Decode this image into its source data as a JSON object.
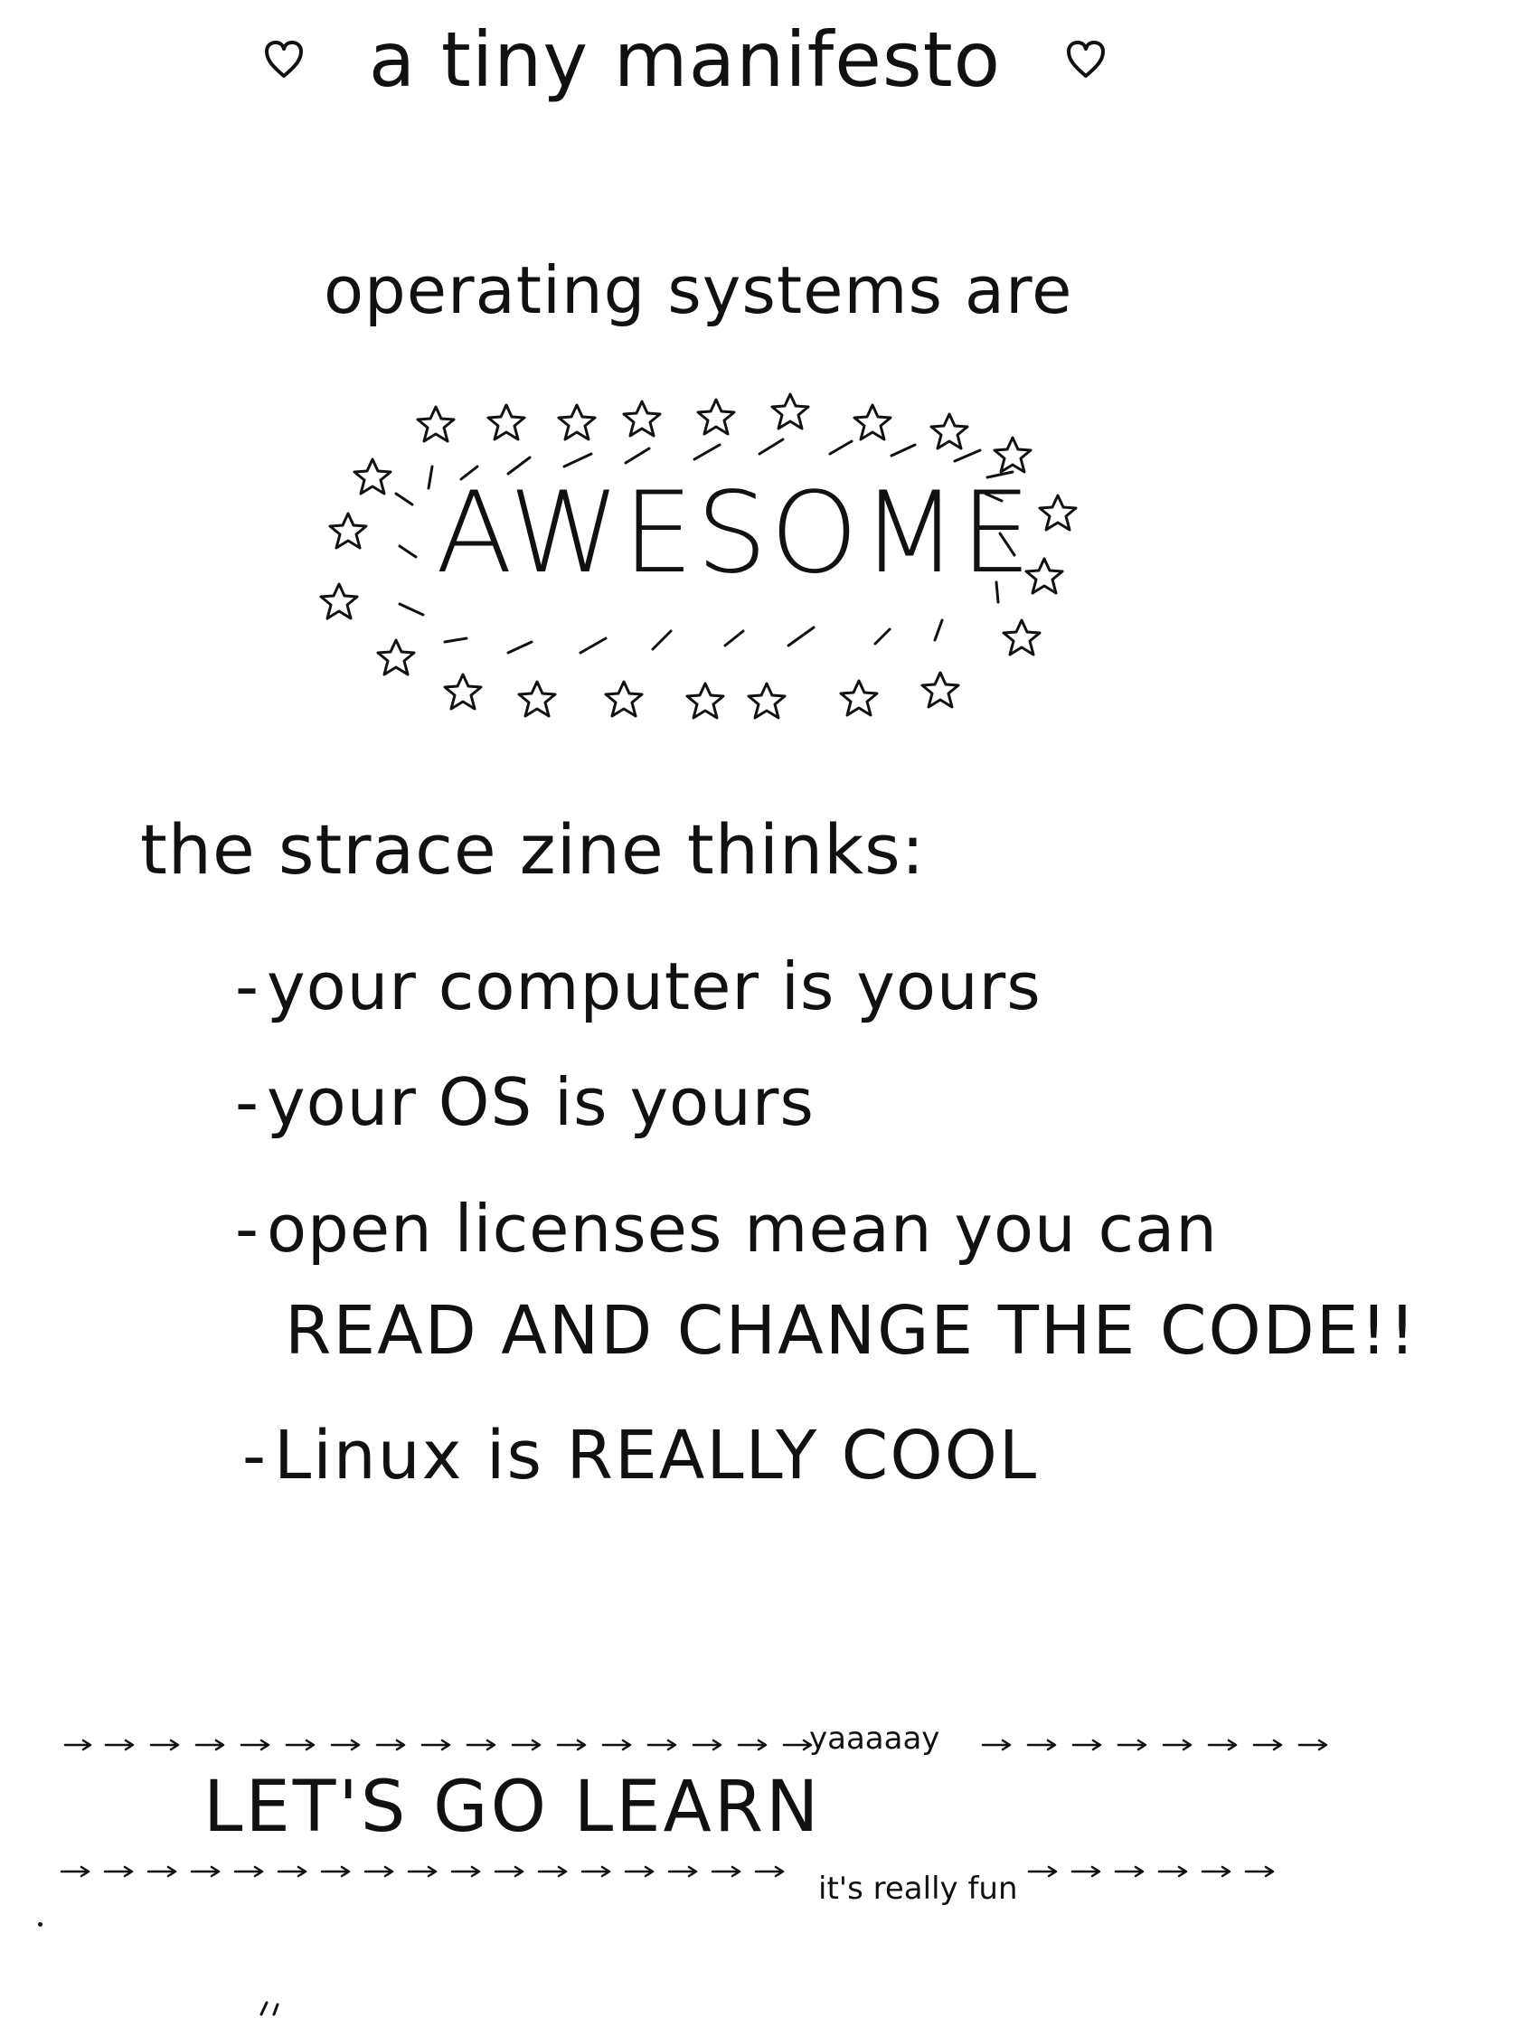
{
  "manifesto": {
    "title": "a tiny manifesto",
    "left_icon": "heart-icon",
    "right_icon": "heart-icon",
    "intro": "operating systems are",
    "awesome": "AWESOME",
    "thinks_label": "the strace zine thinks:",
    "bullets": [
      "your computer is yours",
      "your OS is yours",
      "open licenses mean you can",
      "READ AND CHANGE THE CODE!!",
      "Linux is REALLY COOL"
    ],
    "cta": "LET'S GO LEARN",
    "yay": "yaaaaay",
    "fun": "it's really fun"
  }
}
